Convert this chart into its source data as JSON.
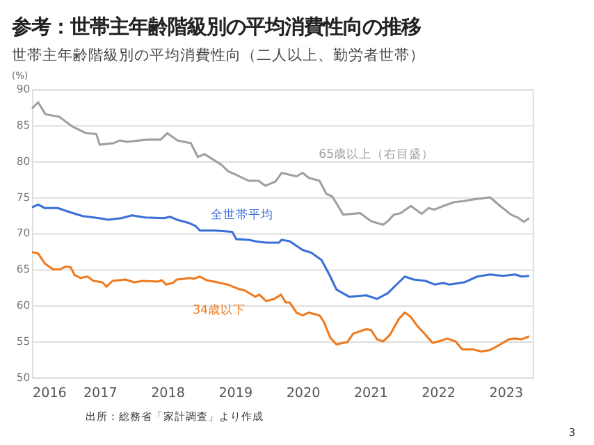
{
  "chart_data": {
    "type": "line",
    "title": "参考：世帯主年齢階級別の平均消費性向の推移",
    "subtitle": "世帯主年齢階級別の平均消費性向（二人以上、勤労者世帯）",
    "ylabel": "(%)",
    "xlim": [
      2016,
      2023.4
    ],
    "xticks": [
      2016,
      2017,
      2018,
      2019,
      2020,
      2021,
      2022,
      2023
    ],
    "ylim": [
      50,
      90
    ],
    "yticks": [
      50,
      55,
      60,
      65,
      70,
      75,
      80,
      85,
      90
    ],
    "grid": "y",
    "legend": false,
    "marker": "none",
    "line_style": "solid",
    "annotations": [
      "出所：総務省「家計調査」より作成",
      "3"
    ],
    "series": [
      {
        "name": "65歳以上（右目盛）",
        "color": "#a0a0a0",
        "x": [
          2016.0,
          2016.09,
          2016.2,
          2016.4,
          2016.6,
          2016.8,
          2016.95,
          2017.0,
          2017.2,
          2017.3,
          2017.4,
          2017.7,
          2017.9,
          2018.0,
          2018.15,
          2018.35,
          2018.45,
          2018.55,
          2018.8,
          2018.9,
          2019.0,
          2019.2,
          2019.35,
          2019.45,
          2019.6,
          2019.69,
          2019.91,
          2020.0,
          2020.09,
          2020.25,
          2020.35,
          2020.44,
          2020.6,
          2020.85,
          2021.01,
          2021.19,
          2021.26,
          2021.35,
          2021.45,
          2021.6,
          2021.76,
          2021.86,
          2021.95,
          2022.08,
          2022.23,
          2022.39,
          2022.52,
          2022.77,
          2022.92,
          2023.08,
          2023.18,
          2023.27,
          2023.35
        ],
        "values": [
          87.3,
          88.2,
          86.5,
          86.2,
          84.8,
          83.9,
          83.8,
          82.3,
          82.5,
          82.9,
          82.7,
          83.0,
          83.0,
          83.9,
          82.9,
          82.5,
          80.6,
          81.0,
          79.5,
          78.6,
          78.2,
          77.3,
          77.3,
          76.6,
          77.2,
          78.4,
          77.9,
          78.4,
          77.7,
          77.3,
          75.5,
          75.1,
          72.6,
          72.8,
          71.7,
          71.2,
          71.7,
          72.6,
          72.8,
          73.8,
          72.7,
          73.5,
          73.3,
          73.8,
          74.3,
          74.5,
          74.7,
          75.0,
          73.8,
          72.6,
          72.2,
          71.6,
          72.1
        ]
      },
      {
        "name": "全世帯平均",
        "color": "#3a6fd8",
        "x": [
          2016.0,
          2016.09,
          2016.19,
          2016.38,
          2016.57,
          2016.75,
          2016.99,
          2017.13,
          2017.32,
          2017.48,
          2017.67,
          2017.95,
          2018.04,
          2018.14,
          2018.33,
          2018.42,
          2018.48,
          2018.7,
          2018.96,
          2019.02,
          2019.21,
          2019.3,
          2019.46,
          2019.65,
          2019.69,
          2019.81,
          2020.0,
          2020.13,
          2020.28,
          2020.41,
          2020.5,
          2020.69,
          2020.94,
          2021.1,
          2021.26,
          2021.51,
          2021.64,
          2021.82,
          2021.95,
          2022.08,
          2022.17,
          2022.39,
          2022.58,
          2022.77,
          2022.96,
          2023.14,
          2023.24,
          2023.35
        ],
        "values": [
          73.6,
          74.0,
          73.5,
          73.5,
          72.9,
          72.4,
          72.1,
          71.9,
          72.1,
          72.5,
          72.2,
          72.1,
          72.3,
          71.9,
          71.4,
          71.0,
          70.4,
          70.4,
          70.2,
          69.2,
          69.1,
          68.9,
          68.7,
          68.7,
          69.1,
          68.9,
          67.7,
          67.3,
          66.3,
          64.0,
          62.2,
          61.2,
          61.4,
          60.9,
          61.7,
          64.0,
          63.6,
          63.4,
          62.9,
          63.1,
          62.9,
          63.2,
          64.0,
          64.3,
          64.1,
          64.3,
          64.0,
          64.1
        ]
      },
      {
        "name": "34歳以下",
        "color": "#f07a1e",
        "x": [
          2016.0,
          2016.09,
          2016.19,
          2016.31,
          2016.41,
          2016.5,
          2016.57,
          2016.63,
          2016.72,
          2016.82,
          2016.91,
          2017.04,
          2017.1,
          2017.19,
          2017.38,
          2017.51,
          2017.64,
          2017.86,
          2017.92,
          2017.98,
          2018.08,
          2018.14,
          2018.26,
          2018.33,
          2018.39,
          2018.48,
          2018.58,
          2018.74,
          2018.89,
          2019.05,
          2019.14,
          2019.3,
          2019.36,
          2019.46,
          2019.58,
          2019.68,
          2019.75,
          2019.81,
          2019.91,
          2020.0,
          2020.09,
          2020.25,
          2020.31,
          2020.41,
          2020.5,
          2020.66,
          2020.75,
          2020.94,
          2021.01,
          2021.1,
          2021.19,
          2021.29,
          2021.42,
          2021.51,
          2021.6,
          2021.7,
          2021.82,
          2021.92,
          2022.01,
          2022.14,
          2022.26,
          2022.36,
          2022.52,
          2022.64,
          2022.77,
          2022.89,
          2023.05,
          2023.14,
          2023.24,
          2023.35
        ],
        "values": [
          67.4,
          67.2,
          65.8,
          65.0,
          65.0,
          65.4,
          65.3,
          64.2,
          63.8,
          64.0,
          63.4,
          63.2,
          62.6,
          63.4,
          63.6,
          63.2,
          63.4,
          63.3,
          63.5,
          62.9,
          63.1,
          63.6,
          63.7,
          63.8,
          63.7,
          64.0,
          63.5,
          63.2,
          62.9,
          62.3,
          62.1,
          61.2,
          61.5,
          60.6,
          60.9,
          61.5,
          60.4,
          60.4,
          59.0,
          58.6,
          59.0,
          58.6,
          57.8,
          55.5,
          54.6,
          54.9,
          56.1,
          56.7,
          56.6,
          55.3,
          55.0,
          55.9,
          58.1,
          59.0,
          58.4,
          57.1,
          55.9,
          54.8,
          55.0,
          55.4,
          55.0,
          53.9,
          53.9,
          53.6,
          53.8,
          54.4,
          55.3,
          55.4,
          55.3,
          55.7
        ]
      }
    ]
  }
}
